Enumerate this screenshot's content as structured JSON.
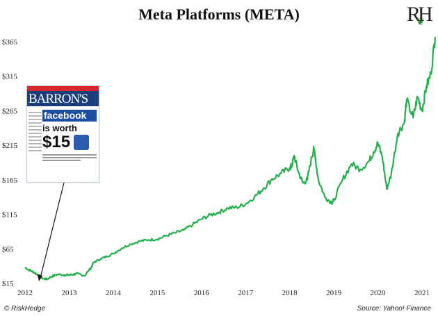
{
  "chart_data": {
    "type": "line",
    "title": "Meta Platforms (META)",
    "xlabel": "",
    "ylabel": "",
    "x_ticks": [
      "2012",
      "2013",
      "2014",
      "2015",
      "2016",
      "2017",
      "2018",
      "2019",
      "2020",
      "2021"
    ],
    "y_ticks": [
      "$15",
      "$65",
      "$115",
      "$165",
      "$215",
      "$265",
      "$315",
      "$365"
    ],
    "ylim": [
      15,
      385
    ],
    "xlim": [
      2012.0,
      2021.3
    ],
    "series": [
      {
        "name": "META",
        "color": "#22b04b",
        "x": [
          2012.0,
          2012.1,
          2012.2,
          2012.3,
          2012.4,
          2012.5,
          2012.6,
          2012.75,
          2012.9,
          2013.0,
          2013.1,
          2013.2,
          2013.35,
          2013.5,
          2013.55,
          2013.7,
          2013.85,
          2014.0,
          2014.2,
          2014.4,
          2014.6,
          2014.8,
          2015.0,
          2015.2,
          2015.4,
          2015.6,
          2015.8,
          2016.0,
          2016.2,
          2016.4,
          2016.6,
          2016.8,
          2017.0,
          2017.2,
          2017.4,
          2017.6,
          2017.8,
          2018.0,
          2018.05,
          2018.1,
          2018.2,
          2018.3,
          2018.4,
          2018.5,
          2018.55,
          2018.65,
          2018.8,
          2018.95,
          2019.0,
          2019.2,
          2019.4,
          2019.6,
          2019.8,
          2019.9,
          2020.0,
          2020.1,
          2020.2,
          2020.3,
          2020.45,
          2020.6,
          2020.65,
          2020.8,
          2020.9,
          2021.0,
          2021.1,
          2021.2,
          2021.3
        ],
        "values": [
          38,
          34,
          31,
          27,
          22,
          21,
          25,
          28,
          27,
          27,
          28,
          29,
          26,
          38,
          45,
          50,
          54,
          58,
          66,
          72,
          76,
          78,
          79,
          84,
          88,
          92,
          100,
          108,
          114,
          118,
          124,
          125,
          130,
          140,
          152,
          166,
          174,
          182,
          185,
          200,
          176,
          160,
          165,
          198,
          210,
          165,
          140,
          132,
          135,
          165,
          188,
          180,
          192,
          205,
          218,
          198,
          152,
          172,
          232,
          248,
          280,
          255,
          285,
          265,
          300,
          318,
          372
        ]
      }
    ]
  },
  "logo": {
    "text": "RH"
  },
  "footer": {
    "left": "© RiskHedge",
    "right": "Source: Yahoo! Finance"
  },
  "cover": {
    "masthead": "BARRON'S",
    "headline1": "facebook",
    "headline2": "is worth",
    "headline3": "$15"
  }
}
